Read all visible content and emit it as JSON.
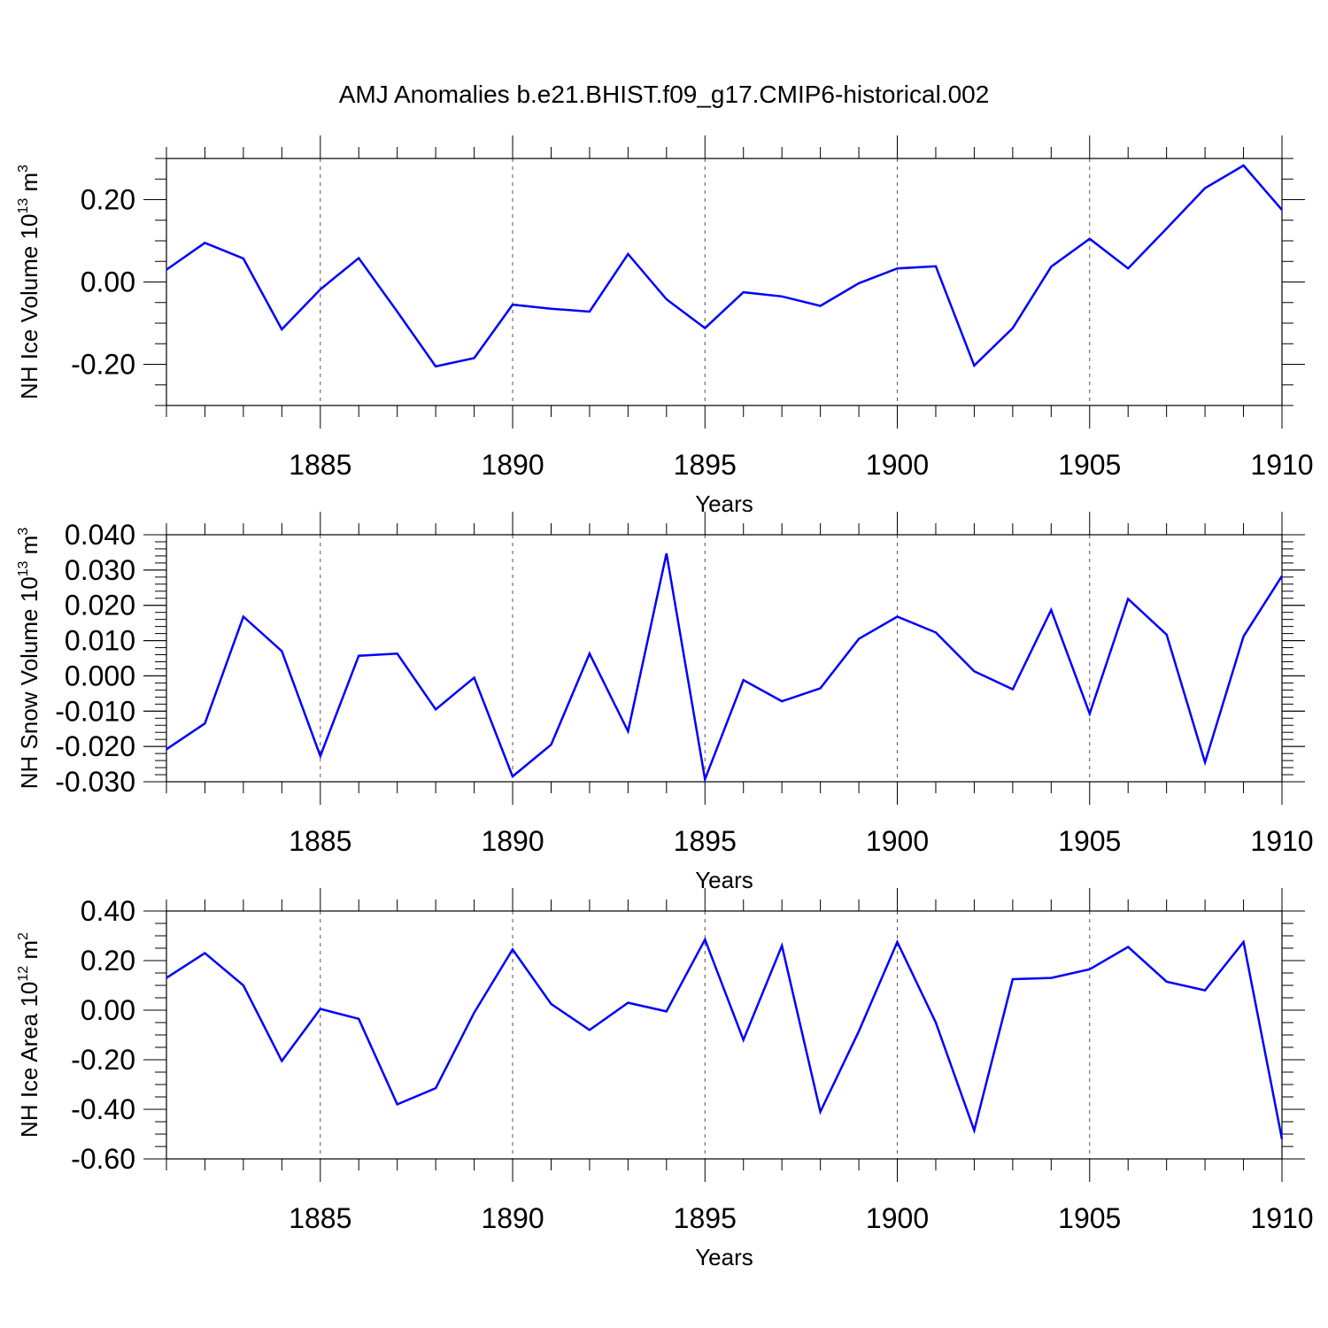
{
  "figure_title": "AMJ Anomalies b.e21.BHIST.f09_g17.CMIP6-historical.002",
  "line_color": "#0000ff",
  "chart_data": [
    {
      "type": "line",
      "name": "nh-ice-volume",
      "ylabel_parts": [
        "NH Ice Volume 10",
        "13",
        " m",
        "3"
      ],
      "xlabel": "Years",
      "x": [
        1881,
        1882,
        1883,
        1884,
        1885,
        1886,
        1887,
        1888,
        1889,
        1890,
        1891,
        1892,
        1893,
        1894,
        1895,
        1896,
        1897,
        1898,
        1899,
        1900,
        1901,
        1902,
        1903,
        1904,
        1905,
        1906,
        1907,
        1908,
        1909,
        1910
      ],
      "series": [
        {
          "name": "NH Ice Volume",
          "values": [
            0.03,
            0.095,
            0.057,
            -0.115,
            -0.018,
            0.058,
            -0.072,
            -0.205,
            -0.185,
            -0.055,
            -0.065,
            -0.072,
            0.068,
            -0.042,
            -0.112,
            -0.025,
            -0.035,
            -0.058,
            -0.003,
            0.033,
            0.038,
            -0.203,
            -0.112,
            0.037,
            0.105,
            0.033,
            0.13,
            0.228,
            0.283,
            0.175
          ]
        }
      ],
      "xlim": [
        1881,
        1910
      ],
      "ylim": [
        -0.3,
        0.3
      ],
      "xticks": [
        1885,
        1890,
        1895,
        1900,
        1905,
        1910
      ],
      "xtick_labels": [
        "1885",
        "1890",
        "1895",
        "1900",
        "1905",
        "1910"
      ],
      "yticks": [
        -0.2,
        0.0,
        0.2
      ],
      "ytick_labels": [
        "-0.20",
        "0.00",
        "0.20"
      ],
      "yminor_step": 0.05,
      "grid": "vertical dashed at major x ticks"
    },
    {
      "type": "line",
      "name": "nh-snow-volume",
      "ylabel_parts": [
        "NH Snow Volume 10",
        "13",
        " m",
        "3"
      ],
      "xlabel": "Years",
      "x": [
        1881,
        1882,
        1883,
        1884,
        1885,
        1886,
        1887,
        1888,
        1889,
        1890,
        1891,
        1892,
        1893,
        1894,
        1895,
        1896,
        1897,
        1898,
        1899,
        1900,
        1901,
        1902,
        1903,
        1904,
        1905,
        1906,
        1907,
        1908,
        1909,
        1910
      ],
      "series": [
        {
          "name": "NH Snow Volume",
          "values": [
            -0.0208,
            -0.0135,
            0.0168,
            0.007,
            -0.0227,
            0.0057,
            0.0063,
            -0.0095,
            -0.0005,
            -0.0285,
            -0.0195,
            0.0063,
            -0.0157,
            0.0347,
            -0.0293,
            -0.0012,
            -0.0072,
            -0.0035,
            0.0105,
            0.0168,
            0.0123,
            0.0013,
            -0.0038,
            0.0187,
            -0.0107,
            0.0218,
            0.0117,
            -0.0245,
            0.0112,
            0.0283
          ]
        }
      ],
      "xlim": [
        1881,
        1910
      ],
      "ylim": [
        -0.03,
        0.04
      ],
      "xticks": [
        1885,
        1890,
        1895,
        1900,
        1905,
        1910
      ],
      "xtick_labels": [
        "1885",
        "1890",
        "1895",
        "1900",
        "1905",
        "1910"
      ],
      "yticks": [
        -0.03,
        -0.02,
        -0.01,
        0.0,
        0.01,
        0.02,
        0.03,
        0.04
      ],
      "ytick_labels": [
        "-0.030",
        "-0.020",
        "-0.010",
        "0.000",
        "0.010",
        "0.020",
        "0.030",
        "0.040"
      ],
      "yminor_step": 0.002,
      "grid": "vertical dashed at major x ticks"
    },
    {
      "type": "line",
      "name": "nh-ice-area",
      "ylabel_parts": [
        "NH Ice Area 10",
        "12",
        " m",
        "2"
      ],
      "xlabel": "Years",
      "x": [
        1881,
        1882,
        1883,
        1884,
        1885,
        1886,
        1887,
        1888,
        1889,
        1890,
        1891,
        1892,
        1893,
        1894,
        1895,
        1896,
        1897,
        1898,
        1899,
        1900,
        1901,
        1902,
        1903,
        1904,
        1905,
        1906,
        1907,
        1908,
        1909,
        1910
      ],
      "series": [
        {
          "name": "NH Ice Area",
          "values": [
            0.13,
            0.23,
            0.1,
            -0.205,
            0.005,
            -0.035,
            -0.38,
            -0.315,
            -0.01,
            0.245,
            0.025,
            -0.08,
            0.03,
            -0.005,
            0.285,
            -0.12,
            0.26,
            -0.41,
            -0.085,
            0.275,
            -0.05,
            -0.485,
            0.125,
            0.13,
            0.165,
            0.255,
            0.115,
            0.08,
            0.275,
            -0.52
          ]
        }
      ],
      "xlim": [
        1881,
        1910
      ],
      "ylim": [
        -0.6,
        0.4
      ],
      "xticks": [
        1885,
        1890,
        1895,
        1900,
        1905,
        1910
      ],
      "xtick_labels": [
        "1885",
        "1890",
        "1895",
        "1900",
        "1905",
        "1910"
      ],
      "yticks": [
        -0.6,
        -0.4,
        -0.2,
        0.0,
        0.2,
        0.4
      ],
      "ytick_labels": [
        "-0.60",
        "-0.40",
        "-0.20",
        "0.00",
        "0.20",
        "0.40"
      ],
      "yminor_step": 0.05,
      "grid": "vertical dashed at major x ticks"
    }
  ]
}
